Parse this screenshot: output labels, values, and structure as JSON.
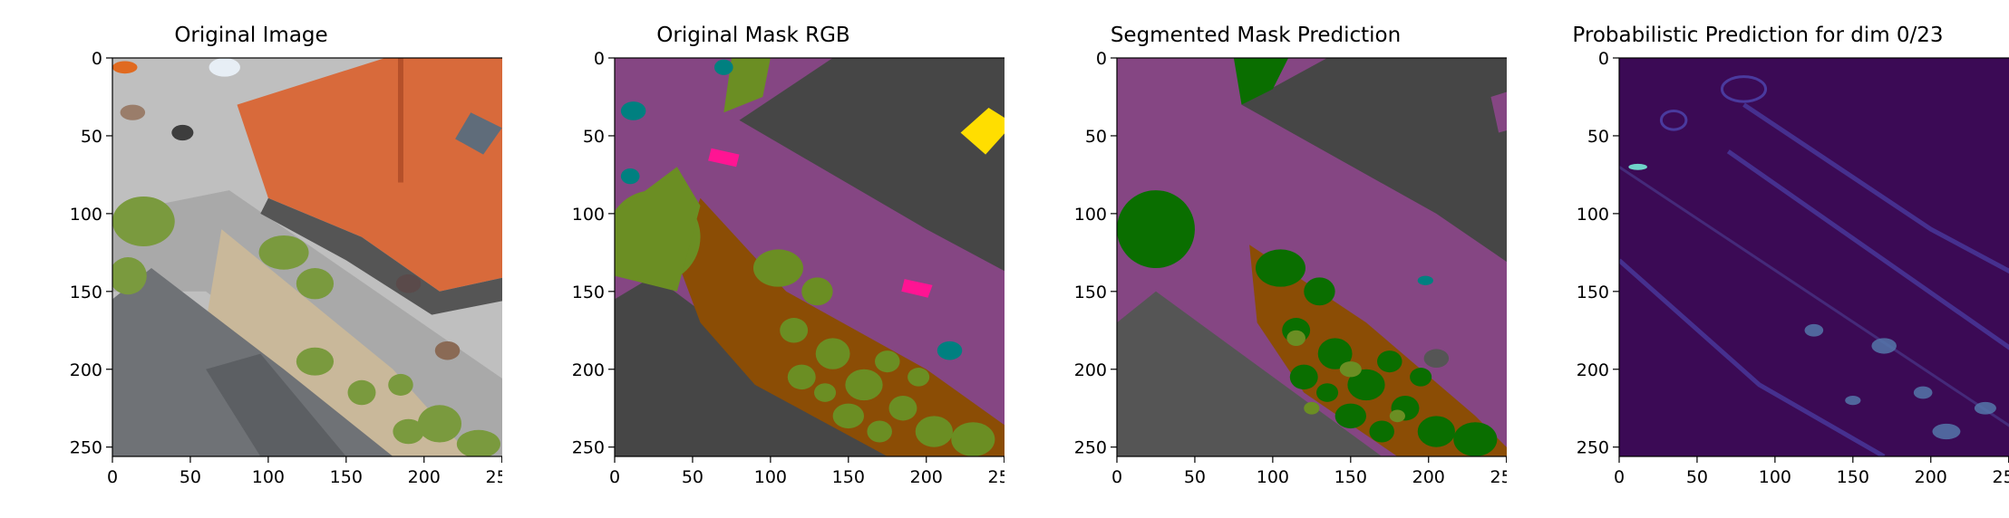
{
  "figure": {
    "panels": [
      {
        "title": "Original Image",
        "kind": "photo"
      },
      {
        "title": "Original Mask RGB",
        "kind": "mask"
      },
      {
        "title": "Segmented Mask Prediction",
        "kind": "prediction"
      },
      {
        "title": "Probabilistic Prediction for dim 0/23",
        "kind": "probability"
      }
    ],
    "x_ticks": [
      "0",
      "50",
      "100",
      "150",
      "200",
      "250"
    ],
    "y_ticks": [
      "0",
      "50",
      "100",
      "150",
      "200",
      "250"
    ],
    "image_extent": [
      0,
      256
    ],
    "colors": {
      "roof_tile": "#d86a3b",
      "roof_slate": "#6f7276",
      "pavement": "#bfbfbf",
      "vegetation_photo": "#7a9a3e",
      "mask_purple": "#854683",
      "mask_dark_gray": "#464646",
      "mask_olive": "#6b8e23",
      "mask_brown": "#8b4d05",
      "mask_teal": "#008080",
      "mask_yellow": "#ffde00",
      "mask_pink": "#ff1493",
      "pred_green": "#0a6e00",
      "prob_bg": "#3b0a55",
      "prob_edge": "#4a3a9e"
    }
  }
}
